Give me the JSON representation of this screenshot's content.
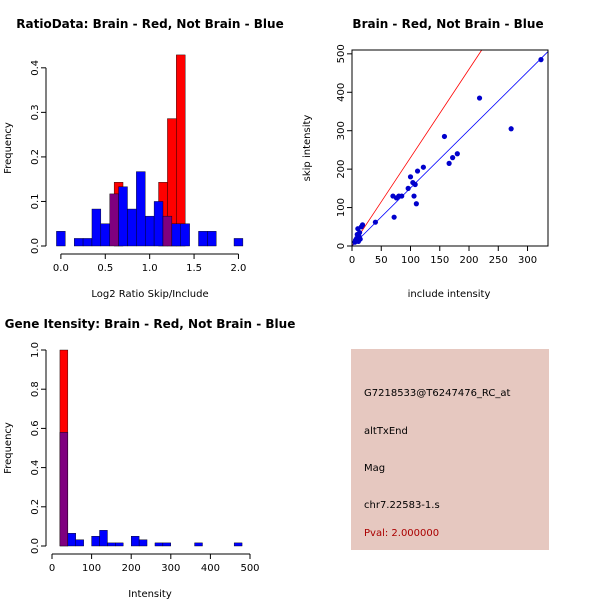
{
  "colors": {
    "red": "#ff0000",
    "blue": "#0000ff",
    "purple": "#7f007f",
    "dot": "#0000cc",
    "panel": "#e6c8c0",
    "pval": "#aa0000"
  },
  "chart_data": [
    {
      "type": "bar",
      "subtype": "histogram-overlay",
      "title": "RatioData: Brain - Red, Not Brain - Blue",
      "xlabel": "Log2 Ratio Skip/Include",
      "ylabel": "Frequency",
      "xlim": [
        -0.1,
        2.13
      ],
      "ylim": [
        0,
        0.44
      ],
      "xticks": [
        "0.0",
        "0.5",
        "1.0",
        "1.5",
        "2.0"
      ],
      "yticks": [
        "0.0",
        "0.1",
        "0.2",
        "0.3",
        "0.4"
      ],
      "bin_width": 0.1,
      "series": [
        {
          "name": "Brain",
          "color": "red",
          "bins": [
            [
              0.6,
              0.143
            ],
            [
              1.1,
              0.143
            ],
            [
              1.2,
              0.286
            ],
            [
              1.3,
              0.429
            ]
          ]
        },
        {
          "name": "Not Brain",
          "color": "blue",
          "bins": [
            [
              -0.05,
              0.033
            ],
            [
              0.15,
              0.017
            ],
            [
              0.25,
              0.017
            ],
            [
              0.35,
              0.083
            ],
            [
              0.45,
              0.05
            ],
            [
              0.55,
              0.117
            ],
            [
              0.65,
              0.133
            ],
            [
              0.75,
              0.083
            ],
            [
              0.85,
              0.167
            ],
            [
              0.95,
              0.067
            ],
            [
              1.05,
              0.1
            ],
            [
              1.15,
              0.067
            ],
            [
              1.25,
              0.05
            ],
            [
              1.35,
              0.05
            ],
            [
              1.55,
              0.033
            ],
            [
              1.65,
              0.033
            ],
            [
              1.95,
              0.017
            ]
          ]
        }
      ]
    },
    {
      "type": "scatter",
      "title": "Brain - Red, Not Brain - Blue",
      "xlabel": "include intensity",
      "ylabel": "skip intensity",
      "xlim": [
        0,
        335
      ],
      "ylim": [
        0,
        510
      ],
      "xticks": [
        "0",
        "50",
        "100",
        "150",
        "200",
        "250",
        "300"
      ],
      "yticks": [
        "0",
        "100",
        "200",
        "300",
        "400",
        "500"
      ],
      "points": [
        [
          5,
          10
        ],
        [
          6,
          15
        ],
        [
          8,
          20
        ],
        [
          9,
          30
        ],
        [
          10,
          45
        ],
        [
          11,
          12
        ],
        [
          12,
          25
        ],
        [
          13,
          35
        ],
        [
          14,
          18
        ],
        [
          16,
          50
        ],
        [
          18,
          55
        ],
        [
          40,
          62
        ],
        [
          70,
          130
        ],
        [
          72,
          75
        ],
        [
          76,
          125
        ],
        [
          80,
          130
        ],
        [
          85,
          130
        ],
        [
          96,
          150
        ],
        [
          100,
          180
        ],
        [
          104,
          165
        ],
        [
          106,
          130
        ],
        [
          108,
          160
        ],
        [
          110,
          110
        ],
        [
          112,
          195
        ],
        [
          122,
          205
        ],
        [
          158,
          285
        ],
        [
          166,
          215
        ],
        [
          172,
          230
        ],
        [
          180,
          240
        ],
        [
          218,
          385
        ],
        [
          272,
          305
        ],
        [
          323,
          485
        ]
      ],
      "lines": [
        {
          "name": "identity-red",
          "color": "red",
          "slope": 2.3,
          "intercept": 0
        },
        {
          "name": "fit-blue",
          "color": "blue",
          "slope": 1.51,
          "intercept": 0
        }
      ]
    },
    {
      "type": "bar",
      "subtype": "histogram-overlay",
      "title": "Gene Itensity: Brain - Red, Not Brain - Blue",
      "xlabel": "Intensity",
      "ylabel": "Frequency",
      "xlim": [
        0,
        500
      ],
      "ylim": [
        0,
        1.0
      ],
      "xticks": [
        "0",
        "100",
        "200",
        "300",
        "400",
        "500"
      ],
      "yticks": [
        "0.0",
        "0.2",
        "0.4",
        "0.6",
        "0.8",
        "1.0"
      ],
      "bin_width": 20,
      "series": [
        {
          "name": "Brain",
          "color": "red",
          "bins": [
            [
              20,
              1.0
            ]
          ]
        },
        {
          "name": "Not Brain",
          "color": "blue",
          "bins": [
            [
              20,
              0.58
            ],
            [
              40,
              0.065
            ],
            [
              60,
              0.032
            ],
            [
              100,
              0.05
            ],
            [
              120,
              0.08
            ],
            [
              140,
              0.016
            ],
            [
              160,
              0.016
            ],
            [
              200,
              0.05
            ],
            [
              220,
              0.032
            ],
            [
              260,
              0.016
            ],
            [
              280,
              0.016
            ],
            [
              360,
              0.016
            ],
            [
              460,
              0.016
            ]
          ]
        }
      ]
    }
  ],
  "info_panel": {
    "probe": "G7218533@T6247476_RC_at",
    "event": "altTxEnd",
    "category": "Mag",
    "location": "chr7.22583-1.s",
    "pval": "Pval: 2.000000"
  }
}
